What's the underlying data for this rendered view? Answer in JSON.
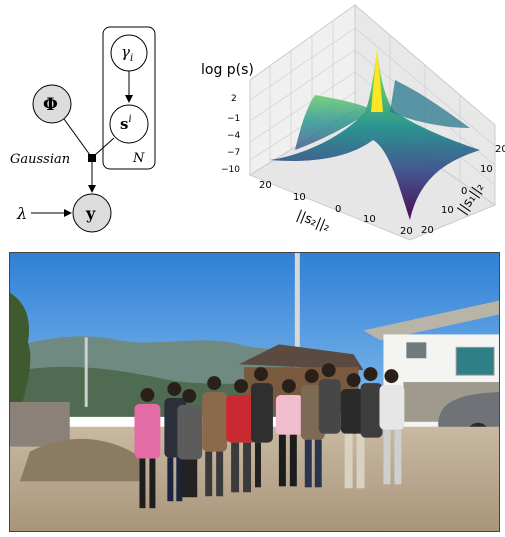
{
  "graphical_model": {
    "node_phi": "Φ",
    "node_gamma": "γ",
    "node_gamma_sub": "i",
    "node_s": "s",
    "node_s_sup": "i",
    "node_y": "y",
    "node_lambda": "λ",
    "factor_label": "Gaussian",
    "plate_label": "N"
  },
  "surface_plot": {
    "zlabel": "log  p(s)",
    "z_ticks": [
      "2",
      "−1",
      "−4",
      "−7",
      "−10"
    ],
    "x_label": "||s₂||₂",
    "x_ticks": [
      "20",
      "10",
      "0",
      "10",
      "20"
    ],
    "y_label": "||s₁||₂",
    "y_ticks": [
      "20",
      "10",
      "0",
      "10",
      "20"
    ]
  },
  "photo": {
    "description_colors": {
      "sky": "#3f8fd8",
      "mountain": "#6b7f78",
      "ground": "#b9a890"
    }
  }
}
